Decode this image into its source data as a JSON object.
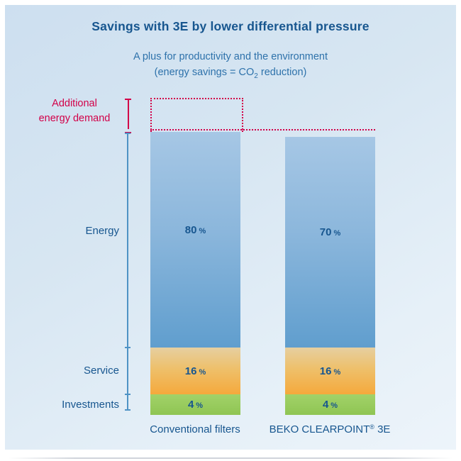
{
  "header": {
    "title": "Savings with 3E by lower differential pressure",
    "subtitle_line1": "A plus for productivity and the environment",
    "subtitle2": {
      "prefix": "(energy savings = CO",
      "sub": "2",
      "suffix": " reduction)"
    }
  },
  "axis_labels": {
    "additional_line1": "Additional",
    "additional_line2": "energy demand",
    "energy": "Energy",
    "service": "Service",
    "investments": "Investments"
  },
  "pct_symbol": "%",
  "bars": {
    "conventional": {
      "label": "Conventional filters",
      "energy": "80",
      "service": "16",
      "investments": "4"
    },
    "beko": {
      "label_prefix": "BEKO CLEARPOINT",
      "label_reg": "®",
      "label_suffix": " 3E",
      "energy": "70",
      "service": "16",
      "investments": "4"
    }
  },
  "colors": {
    "accent_blue": "#17568f",
    "subtitle_blue": "#2e72ab",
    "red": "#d20048",
    "axis_blue": "#4f93c5",
    "bar_blue_top": "#a6c7e5",
    "bar_blue_bottom": "#609ece",
    "bar_orange_top": "#e6cfa0",
    "bar_orange_bottom": "#f5a93c",
    "bar_green": "#96c95c",
    "panel_background_top": "#cddff0",
    "panel_background_bottom": "#edf4fa"
  },
  "chart_data": {
    "type": "bar",
    "subtype": "stacked",
    "title": "Savings with 3E by lower differential pressure",
    "subtitle": "A plus for productivity and the environment (energy savings = CO2 reduction)",
    "categories": [
      "Conventional filters",
      "BEKO CLEARPOINT® 3E"
    ],
    "series": [
      {
        "name": "Energy",
        "values": [
          80,
          70
        ]
      },
      {
        "name": "Service",
        "values": [
          16,
          16
        ]
      },
      {
        "name": "Investments",
        "values": [
          4,
          4
        ]
      }
    ],
    "units": "%",
    "ylim": [
      0,
      100
    ],
    "grid": false,
    "legend_position": "left-axis-labels",
    "annotations": [
      "Additional energy demand: dotted red outline above the Conventional filters bar with a dashed red reference line extending across both bars"
    ]
  }
}
